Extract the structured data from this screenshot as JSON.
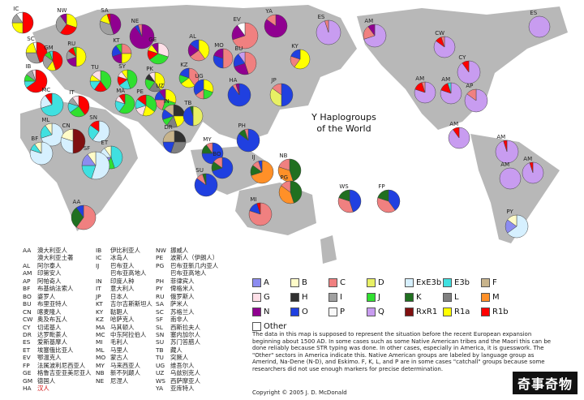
{
  "title_lines": [
    "Y Haplogroups",
    "of the World"
  ],
  "colors": {
    "A": "#8c8cf0",
    "B": "#fffbc8",
    "C": "#f08080",
    "D": "#e8f064",
    "ExE3b": "#d6f0ff",
    "E3b": "#40e0e0",
    "F": "#c8b48c",
    "G": "#ffe0e8",
    "H": "#303030",
    "I": "#a0a0a0",
    "J": "#30e030",
    "K": "#207020",
    "L": "#808080",
    "M": "#ff9028",
    "N": "#900090",
    "O": "#2040e0",
    "P": "#f8f8f8",
    "Q": "#c89cf0",
    "RxR1": "#801010",
    "R1a": "#ffff00",
    "R1b": "#ff0000",
    "Other": "#ffffff"
  },
  "legend": [
    {
      "label": "A",
      "key": "A"
    },
    {
      "label": "B",
      "key": "B"
    },
    {
      "label": "C",
      "key": "C"
    },
    {
      "label": "D",
      "key": "D"
    },
    {
      "label": "ExE3b",
      "key": "ExE3b"
    },
    {
      "label": "E3b",
      "key": "E3b"
    },
    {
      "label": "F",
      "key": "F"
    },
    {
      "label": "G",
      "key": "G"
    },
    {
      "label": "H",
      "key": "H"
    },
    {
      "label": "I",
      "key": "I"
    },
    {
      "label": "J",
      "key": "J"
    },
    {
      "label": "K",
      "key": "K"
    },
    {
      "label": "L",
      "key": "L"
    },
    {
      "label": "M",
      "key": "M"
    },
    {
      "label": "N",
      "key": "N"
    },
    {
      "label": "O",
      "key": "O"
    },
    {
      "label": "P",
      "key": "P"
    },
    {
      "label": "Q",
      "key": "Q"
    },
    {
      "label": "RxR1",
      "key": "RxR1"
    },
    {
      "label": "R1a",
      "key": "R1a"
    },
    {
      "label": "R1b",
      "key": "R1b"
    },
    {
      "label": "Other",
      "key": "Other"
    }
  ],
  "pies": [
    {
      "label": "IC",
      "slices": [
        [
          "R1b",
          50
        ],
        [
          "R1a",
          25
        ],
        [
          "I",
          15
        ],
        [
          "Other",
          10
        ]
      ]
    },
    {
      "label": "NW",
      "slices": [
        [
          "R1a",
          30
        ],
        [
          "R1b",
          30
        ],
        [
          "I",
          30
        ],
        [
          "N",
          10
        ]
      ]
    },
    {
      "label": "SA",
      "slices": [
        [
          "N",
          45
        ],
        [
          "I",
          35
        ],
        [
          "R1a",
          15
        ],
        [
          "R1b",
          5
        ]
      ]
    },
    {
      "label": "NE",
      "slices": [
        [
          "N",
          90
        ],
        [
          "O",
          5
        ],
        [
          "C",
          5
        ]
      ]
    },
    {
      "label": "EV",
      "slices": [
        [
          "C",
          70
        ],
        [
          "N",
          20
        ],
        [
          "Other",
          10
        ]
      ]
    },
    {
      "label": "YA",
      "slices": [
        [
          "N",
          85
        ],
        [
          "C",
          15
        ]
      ]
    },
    {
      "label": "AM",
      "slices": [
        [
          "Q",
          70
        ],
        [
          "C",
          20
        ],
        [
          "N",
          10
        ]
      ]
    },
    {
      "label": "ES",
      "slices": [
        [
          "Q",
          95
        ],
        [
          "C",
          5
        ]
      ]
    },
    {
      "label": "SC",
      "slices": [
        [
          "R1b",
          45
        ],
        [
          "I",
          30
        ],
        [
          "R1a",
          20
        ],
        [
          "Other",
          5
        ]
      ]
    },
    {
      "label": "GM",
      "slices": [
        [
          "R1b",
          45
        ],
        [
          "R1a",
          15
        ],
        [
          "I",
          25
        ],
        [
          "J",
          10
        ],
        [
          "E3b",
          5
        ]
      ]
    },
    {
      "label": "RU",
      "slices": [
        [
          "R1a",
          50
        ],
        [
          "N",
          20
        ],
        [
          "I",
          15
        ],
        [
          "R1b",
          10
        ],
        [
          "J",
          5
        ]
      ]
    },
    {
      "label": "KT",
      "slices": [
        [
          "C",
          25
        ],
        [
          "R1a",
          25
        ],
        [
          "N",
          20
        ],
        [
          "O",
          20
        ],
        [
          "J",
          10
        ]
      ]
    },
    {
      "label": "GE",
      "slices": [
        [
          "G",
          30
        ],
        [
          "J",
          35
        ],
        [
          "R1b",
          15
        ],
        [
          "R1a",
          10
        ],
        [
          "N",
          10
        ]
      ]
    },
    {
      "label": "AL",
      "slices": [
        [
          "R1a",
          40
        ],
        [
          "C",
          25
        ],
        [
          "N",
          20
        ],
        [
          "O",
          15
        ]
      ]
    },
    {
      "label": "MO",
      "slices": [
        [
          "C",
          50
        ],
        [
          "O",
          30
        ],
        [
          "N",
          20
        ]
      ]
    },
    {
      "label": "BU",
      "slices": [
        [
          "C",
          45
        ],
        [
          "N",
          25
        ],
        [
          "O",
          20
        ],
        [
          "Q",
          10
        ]
      ]
    },
    {
      "label": "KY",
      "slices": [
        [
          "R1a",
          60
        ],
        [
          "C",
          20
        ],
        [
          "O",
          20
        ]
      ]
    },
    {
      "label": "ES",
      "slices": [
        [
          "Q",
          100
        ]
      ]
    },
    {
      "label": "CW",
      "slices": [
        [
          "Q",
          85
        ],
        [
          "R1b",
          10
        ],
        [
          "C",
          5
        ]
      ]
    },
    {
      "label": "CY",
      "slices": [
        [
          "Q",
          90
        ],
        [
          "R1b",
          10
        ]
      ]
    },
    {
      "label": "IB",
      "slices": [
        [
          "R1b",
          65
        ],
        [
          "E3b",
          10
        ],
        [
          "J",
          10
        ],
        [
          "I",
          10
        ],
        [
          "G",
          5
        ]
      ]
    },
    {
      "label": "TU",
      "slices": [
        [
          "J",
          40
        ],
        [
          "R1b",
          20
        ],
        [
          "E3b",
          15
        ],
        [
          "R1a",
          10
        ],
        [
          "G",
          15
        ]
      ]
    },
    {
      "label": "SY",
      "slices": [
        [
          "J",
          45
        ],
        [
          "E3b",
          20
        ],
        [
          "R1b",
          15
        ],
        [
          "G",
          10
        ],
        [
          "R1a",
          10
        ]
      ]
    },
    {
      "label": "PK",
      "slices": [
        [
          "R1a",
          40
        ],
        [
          "L",
          20
        ],
        [
          "J",
          20
        ],
        [
          "H",
          10
        ],
        [
          "G",
          10
        ]
      ]
    },
    {
      "label": "KZ",
      "slices": [
        [
          "C",
          40
        ],
        [
          "R1a",
          25
        ],
        [
          "J",
          15
        ],
        [
          "O",
          20
        ]
      ]
    },
    {
      "label": "UZ",
      "slices": [
        [
          "R1a",
          30
        ],
        [
          "J",
          25
        ],
        [
          "C",
          20
        ],
        [
          "O",
          15
        ],
        [
          "N",
          10
        ]
      ]
    },
    {
      "label": "UG",
      "slices": [
        [
          "R1a",
          30
        ],
        [
          "J",
          20
        ],
        [
          "C",
          15
        ],
        [
          "O",
          35
        ]
      ]
    },
    {
      "label": "JP",
      "slices": [
        [
          "O",
          50
        ],
        [
          "D",
          35
        ],
        [
          "C",
          15
        ]
      ]
    },
    {
      "label": "AM",
      "slices": [
        [
          "Q",
          80
        ],
        [
          "R1b",
          15
        ],
        [
          "C",
          5
        ]
      ]
    },
    {
      "label": "AM",
      "slices": [
        [
          "Q",
          80
        ],
        [
          "R1b",
          15
        ],
        [
          "E3b",
          5
        ]
      ]
    },
    {
      "label": "AP",
      "slices": [
        [
          "Q",
          85
        ],
        [
          "C",
          15
        ]
      ]
    },
    {
      "label": "MC",
      "slices": [
        [
          "E3b",
          70
        ],
        [
          "ExE3b",
          20
        ],
        [
          "R1b",
          10
        ]
      ]
    },
    {
      "label": "IT",
      "slices": [
        [
          "R1b",
          40
        ],
        [
          "J",
          25
        ],
        [
          "E3b",
          15
        ],
        [
          "I",
          10
        ],
        [
          "G",
          10
        ]
      ]
    },
    {
      "label": "MA",
      "slices": [
        [
          "J",
          60
        ],
        [
          "E3b",
          20
        ],
        [
          "G",
          10
        ],
        [
          "R1b",
          10
        ]
      ]
    },
    {
      "label": "PE",
      "slices": [
        [
          "J",
          35
        ],
        [
          "R1a",
          20
        ],
        [
          "G",
          15
        ],
        [
          "E3b",
          15
        ],
        [
          "R1b",
          15
        ]
      ]
    },
    {
      "label": "IN",
      "slices": [
        [
          "H",
          25
        ],
        [
          "R1a",
          20
        ],
        [
          "L",
          15
        ],
        [
          "J",
          10
        ],
        [
          "O",
          15
        ],
        [
          "F",
          15
        ]
      ]
    },
    {
      "label": "TB",
      "slices": [
        [
          "D",
          50
        ],
        [
          "O",
          45
        ],
        [
          "K",
          5
        ]
      ]
    },
    {
      "label": "HA",
      "slices": [
        [
          "O",
          90
        ],
        [
          "C",
          5
        ],
        [
          "N",
          5
        ]
      ]
    },
    {
      "label": "ML",
      "slices": [
        [
          "ExE3b",
          70
        ],
        [
          "E3b",
          20
        ],
        [
          "B",
          10
        ]
      ]
    },
    {
      "label": "SN",
      "slices": [
        [
          "ExE3b",
          60
        ],
        [
          "E3b",
          25
        ],
        [
          "R1b",
          15
        ]
      ]
    },
    {
      "label": "BF",
      "slices": [
        [
          "ExE3b",
          80
        ],
        [
          "E3b",
          10
        ],
        [
          "B",
          10
        ]
      ]
    },
    {
      "label": "CN",
      "slices": [
        [
          "RxR1",
          50
        ],
        [
          "ExE3b",
          30
        ],
        [
          "B",
          20
        ]
      ]
    },
    {
      "label": "ET",
      "slices": [
        [
          "E3b",
          45
        ],
        [
          "J",
          15
        ],
        [
          "A",
          15
        ],
        [
          "ExE3b",
          15
        ],
        [
          "B",
          10
        ]
      ]
    },
    {
      "label": "DR",
      "slices": [
        [
          "H",
          25
        ],
        [
          "L",
          30
        ],
        [
          "O",
          20
        ],
        [
          "F",
          25
        ]
      ]
    },
    {
      "label": "MY",
      "slices": [
        [
          "O",
          75
        ],
        [
          "K",
          15
        ],
        [
          "C",
          10
        ]
      ]
    },
    {
      "label": "PH",
      "slices": [
        [
          "O",
          85
        ],
        [
          "K",
          10
        ],
        [
          "C",
          5
        ]
      ]
    },
    {
      "label": "BO",
      "slices": [
        [
          "O",
          70
        ],
        [
          "K",
          15
        ],
        [
          "C",
          15
        ]
      ]
    },
    {
      "label": "SU",
      "slices": [
        [
          "O",
          85
        ],
        [
          "C",
          10
        ],
        [
          "K",
          5
        ]
      ]
    },
    {
      "label": "IJ",
      "slices": [
        [
          "M",
          70
        ],
        [
          "K",
          15
        ],
        [
          "C",
          10
        ],
        [
          "O",
          5
        ]
      ]
    },
    {
      "label": "NB",
      "slices": [
        [
          "K",
          45
        ],
        [
          "M",
          35
        ],
        [
          "C",
          20
        ]
      ]
    },
    {
      "label": "PG",
      "slices": [
        [
          "K",
          45
        ],
        [
          "M",
          40
        ],
        [
          "C",
          15
        ]
      ]
    },
    {
      "label": "WS",
      "slices": [
        [
          "O",
          45
        ],
        [
          "C",
          35
        ],
        [
          "K",
          20
        ]
      ]
    },
    {
      "label": "FP",
      "slices": [
        [
          "O",
          40
        ],
        [
          "C",
          40
        ],
        [
          "K",
          20
        ]
      ]
    },
    {
      "label": "AM",
      "slices": [
        [
          "Q",
          90
        ],
        [
          "R1b",
          10
        ]
      ]
    },
    {
      "label": "AM",
      "slices": [
        [
          "Q",
          95
        ],
        [
          "R1b",
          5
        ]
      ]
    },
    {
      "label": "AM",
      "slices": [
        [
          "Q",
          100
        ]
      ]
    },
    {
      "label": "AM",
      "slices": [
        [
          "Q",
          95
        ],
        [
          "R1b",
          5
        ]
      ]
    },
    {
      "label": "PY",
      "slices": [
        [
          "ExE3b",
          65
        ],
        [
          "A",
          20
        ],
        [
          "B",
          15
        ]
      ]
    },
    {
      "label": "SF",
      "slices": [
        [
          "ExE3b",
          55
        ],
        [
          "E3b",
          20
        ],
        [
          "A",
          15
        ],
        [
          "B",
          10
        ]
      ]
    },
    {
      "label": "AA",
      "slices": [
        [
          "C",
          60
        ],
        [
          "K",
          30
        ],
        [
          "O",
          10
        ]
      ]
    },
    {
      "label": "MI",
      "slices": [
        [
          "C",
          80
        ],
        [
          "O",
          15
        ],
        [
          "R1b",
          5
        ]
      ]
    }
  ],
  "abbr_columns": [
    [
      [
        "AA",
        "澳大利亚人"
      ],
      [
        "",
        "澳大利亚土著"
      ],
      [
        "AL",
        "阿尔泰人"
      ],
      [
        "AM",
        "印第安人"
      ],
      [
        "AP",
        "阿帕奇人"
      ],
      [
        "BF",
        "布基纳法索人"
      ],
      [
        "BO",
        "婆罗人"
      ],
      [
        "BU",
        "布里亚特人"
      ],
      [
        "CN",
        "喀麦隆人"
      ],
      [
        "CW",
        "奥及布瓦人"
      ],
      [
        "CY",
        "切诺基人"
      ],
      [
        "DR",
        "达罗毗荼人"
      ],
      [
        "ES",
        "爱斯基摩人"
      ],
      [
        "ET",
        "埃塞俄比亚人"
      ],
      [
        "EV",
        "鄂温克人"
      ],
      [
        "FP",
        "法属波利尼西亚人"
      ],
      [
        "GE",
        "格鲁吉亚亚美尼亚人"
      ],
      [
        "GM",
        "德国人"
      ],
      [
        "HA",
        "汉人"
      ]
    ],
    [
      [
        "IB",
        "伊比利亚人"
      ],
      [
        "IC",
        "冰岛人"
      ],
      [
        "IJ",
        "巴布亚人"
      ],
      [
        "",
        "巴布亚高地人"
      ],
      [
        "IN",
        "印度人种"
      ],
      [
        "IT",
        "意大利人"
      ],
      [
        "JP",
        "日本人"
      ],
      [
        "KT",
        "吉尔吉斯斯坦人"
      ],
      [
        "KY",
        "鞑靼人"
      ],
      [
        "KZ",
        "哈萨克人"
      ],
      [
        "MA",
        "马其顿人"
      ],
      [
        "MC",
        "中东阿拉伯人"
      ],
      [
        "MI",
        "毛利人"
      ],
      [
        "ML",
        "马里人"
      ],
      [
        "MO",
        "蒙古人"
      ],
      [
        "MY",
        "马来西亚人"
      ],
      [
        "NB",
        "新不列颠人"
      ],
      [
        "NE",
        "尼涅人"
      ]
    ],
    [
      [
        "NW",
        "挪威人"
      ],
      [
        "PE",
        "波斯人（伊朗人）"
      ],
      [
        "PG",
        "巴布亚新几内亚人"
      ],
      [
        "",
        "巴布亚高地人"
      ],
      [
        "PH",
        "菲律宾人"
      ],
      [
        "PY",
        "俾格米人"
      ],
      [
        "RU",
        "俄罗斯人"
      ],
      [
        "SA",
        "萨米人"
      ],
      [
        "SC",
        "苏格兰人"
      ],
      [
        "SF",
        "南非人"
      ],
      [
        "SL",
        "西斯拉夫人"
      ],
      [
        "SN",
        "塞内加尔人"
      ],
      [
        "SU",
        "苏门答腊人"
      ],
      [
        "TB",
        "藏人"
      ],
      [
        "TU",
        "突厥人"
      ],
      [
        "UG",
        "维吾尔人"
      ],
      [
        "UZ",
        "乌兹别克人"
      ],
      [
        "WS",
        "西萨摩亚人"
      ],
      [
        "YA",
        "亚库特人"
      ]
    ]
  ],
  "note": "The data in this map is supposed to represent the situation before the recent European expansion beginning about 1500 AD. In some cases such as some Native American tribes and the Maori this can be done reliably because STR typing was done. In other cases, especially in America, it is guesswork. The \"Other\" sectors in America indicate this. Native American groups are labeled by language group as Amerind, Na-Dene (N-D), and Eskimo. F, K, L, and P are in some cases \"catchall\" groups because some researchers did not use enough markers for precise determination.",
  "copyright": "Copyright © 2005 J. D. McDonald",
  "watermark": "奇事奇物"
}
